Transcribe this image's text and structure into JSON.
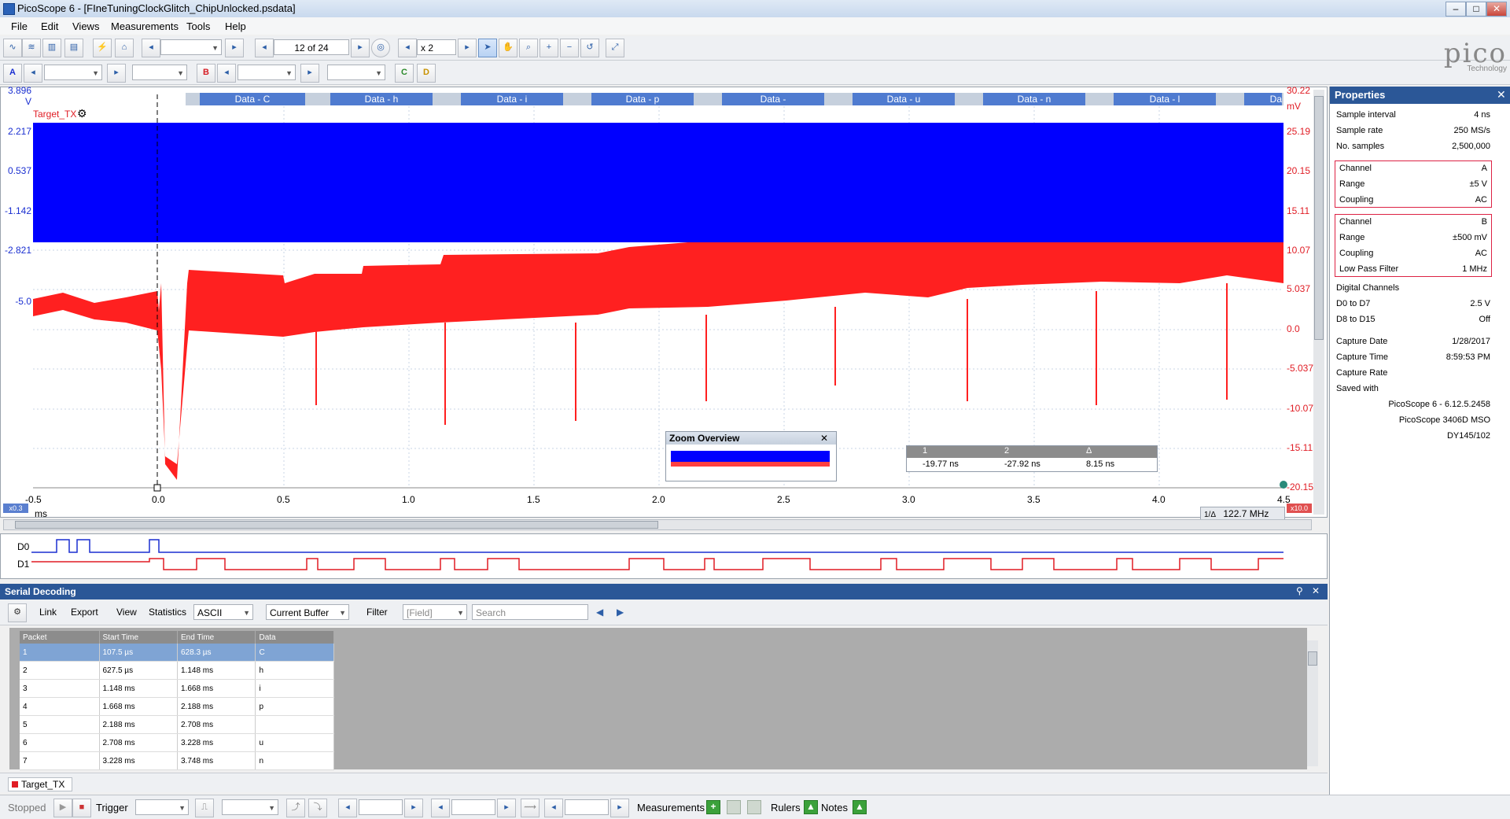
{
  "window": {
    "title": "PicoScope 6 - [FIneTuningClockGlitch_ChipUnlocked.psdata]"
  },
  "menu": [
    "File",
    "Edit",
    "Views",
    "Measurements",
    "Tools",
    "Help"
  ],
  "toolbar1": {
    "buffer_nav": "12 of 24",
    "zoom": "x 2"
  },
  "toolbar2": {
    "channel_a": "A",
    "channel_b": "B",
    "channel_c": "C",
    "channel_d": "D"
  },
  "brand": {
    "logo": "pico",
    "sub": "Technology"
  },
  "scope": {
    "left_axis_unit": "V",
    "right_axis_unit": "mV",
    "channel_label": "Target_TX",
    "left_ticks": [
      "3.896",
      "2.217",
      "0.537",
      "-1.142",
      "-2.821",
      "-5.0"
    ],
    "right_ticks": [
      "30.22",
      "25.19",
      "20.15",
      "15.11",
      "10.07",
      "5.037",
      "0.0",
      "-5.037",
      "-10.07",
      "-15.11",
      "-20.15"
    ],
    "x_ticks": [
      "-0.5",
      "0.0",
      "0.5",
      "1.0",
      "1.5",
      "2.0",
      "2.5",
      "3.0",
      "3.5",
      "4.0",
      "4.5"
    ],
    "x_unit": "ms",
    "left_scale_badge": "x0.3",
    "right_scale_badge": "x10.0",
    "freq_readout": "122.7 MHz",
    "freq_label": "1/Δ",
    "decode_segments": [
      "Data - C",
      "Data - h",
      "Data - i",
      "Data - p",
      "Data -",
      "Data - u",
      "Data - n",
      "Data - l",
      "Da"
    ],
    "digital": [
      "D0",
      "D1"
    ],
    "colors": {
      "ch_a": "#0000ff",
      "ch_b": "#ff0000"
    }
  },
  "zoom_overview": {
    "title": "Zoom Overview"
  },
  "rulers": {
    "h1": "1",
    "h2": "2",
    "h3": "Δ",
    "v1": "-19.77 ns",
    "v2": "-27.92 ns",
    "v3": "8.15 ns"
  },
  "properties": {
    "title": "Properties",
    "rows": [
      {
        "label": "Sample interval",
        "value": "4 ns"
      },
      {
        "label": "Sample rate",
        "value": "250 MS/s"
      },
      {
        "label": "No. samples",
        "value": "2,500,000"
      }
    ],
    "channel_a": [
      {
        "label": "Channel",
        "value": "A"
      },
      {
        "label": "Range",
        "value": "±5 V"
      },
      {
        "label": "Coupling",
        "value": "AC"
      }
    ],
    "channel_b": [
      {
        "label": "Channel",
        "value": "B"
      },
      {
        "label": "Range",
        "value": "±500 mV"
      },
      {
        "label": "Coupling",
        "value": "AC"
      },
      {
        "label": "Low Pass Filter",
        "value": "1 MHz"
      }
    ],
    "digital_channels": "Digital Channels",
    "digital": [
      {
        "label": "D0 to D7",
        "value": "2.5 V"
      },
      {
        "label": "D8 to D15",
        "value": "Off"
      }
    ],
    "capture": [
      {
        "label": "Capture Date",
        "value": "1/28/2017"
      },
      {
        "label": "Capture Time",
        "value": "8:59:53 PM"
      },
      {
        "label": "Capture Rate",
        "value": ""
      },
      {
        "label": "Saved with",
        "value": ""
      }
    ],
    "saved_with": [
      "PicoScope 6 - 6.12.5.2458",
      "PicoScope 3406D MSO",
      "DY145/102"
    ]
  },
  "serial": {
    "title": "Serial Decoding",
    "toolbar": {
      "link": "Link",
      "export": "Export",
      "view": "View",
      "statistics": "Statistics",
      "format": "ASCII",
      "buffer": "Current Buffer",
      "filter": "Filter",
      "field": "[Field]",
      "search": "Search"
    },
    "columns": [
      "Packet",
      "Start Time",
      "End Time",
      "Data"
    ],
    "rows": [
      [
        "1",
        "107.5 µs",
        "628.3 µs",
        "C"
      ],
      [
        "2",
        "627.5 µs",
        "1.148 ms",
        "h"
      ],
      [
        "3",
        "1.148 ms",
        "1.668 ms",
        "i"
      ],
      [
        "4",
        "1.668 ms",
        "2.188 ms",
        "p"
      ],
      [
        "5",
        "2.188 ms",
        "2.708 ms",
        ""
      ],
      [
        "6",
        "2.708 ms",
        "3.228 ms",
        "u"
      ],
      [
        "7",
        "3.228 ms",
        "3.748 ms",
        "n"
      ]
    ],
    "tab": "Target_TX"
  },
  "status": {
    "state": "Stopped",
    "trigger": "Trigger",
    "measurements": "Measurements",
    "rulers": "Rulers",
    "notes": "Notes"
  }
}
